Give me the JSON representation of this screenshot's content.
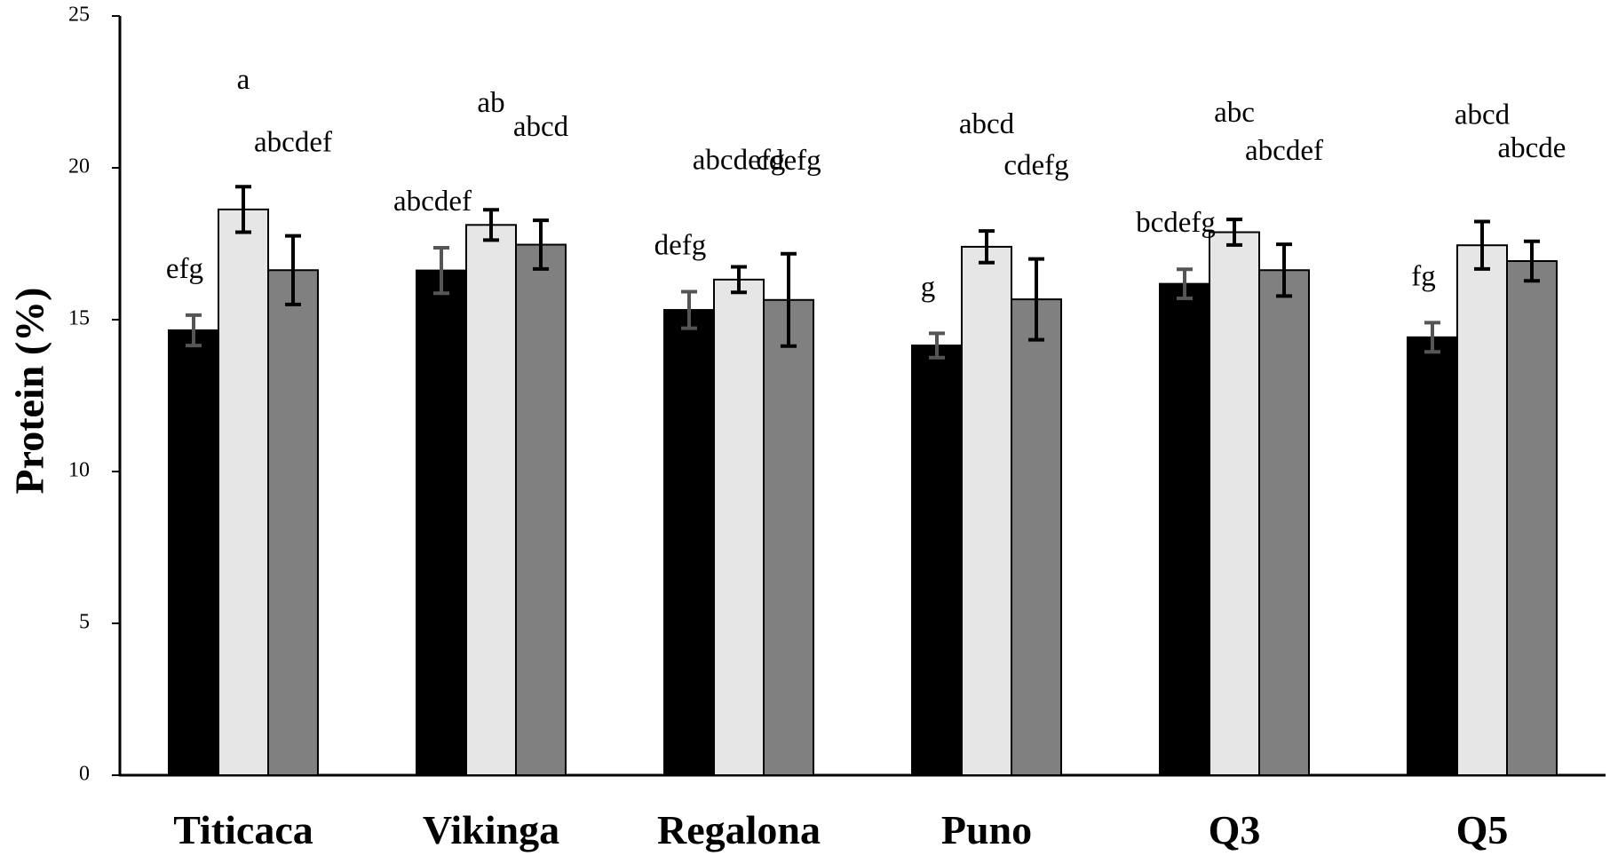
{
  "chart_data": {
    "type": "bar",
    "title": "",
    "xlabel": "",
    "ylabel": "Protein (%)",
    "ylim": [
      0,
      25
    ],
    "yticks": [
      0,
      5,
      10,
      15,
      20,
      25
    ],
    "grid": false,
    "legend": "none",
    "categories": [
      "Titicaca",
      "Vikinga",
      "Regalona",
      "Puno",
      "Q3",
      "Q5"
    ],
    "series": [
      {
        "color": "#000000",
        "error_color": "#555555",
        "values": [
          14.65,
          16.62,
          15.32,
          14.15,
          16.18,
          14.42
        ],
        "errors": [
          0.5,
          0.75,
          0.6,
          0.4,
          0.48,
          0.48
        ],
        "labels": [
          "efg",
          "abcdef",
          "defg",
          "g",
          "bcdefg",
          "fg"
        ]
      },
      {
        "color": "#e6e6e6",
        "error_color": "#000000",
        "values": [
          18.63,
          18.12,
          16.32,
          17.4,
          17.88,
          17.45
        ],
        "errors": [
          0.75,
          0.5,
          0.42,
          0.52,
          0.42,
          0.78
        ],
        "labels": [
          "a",
          "ab",
          "abcdefg",
          "abcd",
          "abc",
          "abcd"
        ]
      },
      {
        "color": "#808080",
        "error_color": "#000000",
        "values": [
          16.63,
          17.47,
          15.65,
          15.67,
          16.63,
          16.93
        ],
        "errors": [
          1.13,
          0.8,
          1.52,
          1.33,
          0.85,
          0.65
        ],
        "labels": [
          "abcdef",
          "abcd",
          "cdefg",
          "cdefg",
          "abcdef",
          "abcde"
        ]
      }
    ]
  }
}
